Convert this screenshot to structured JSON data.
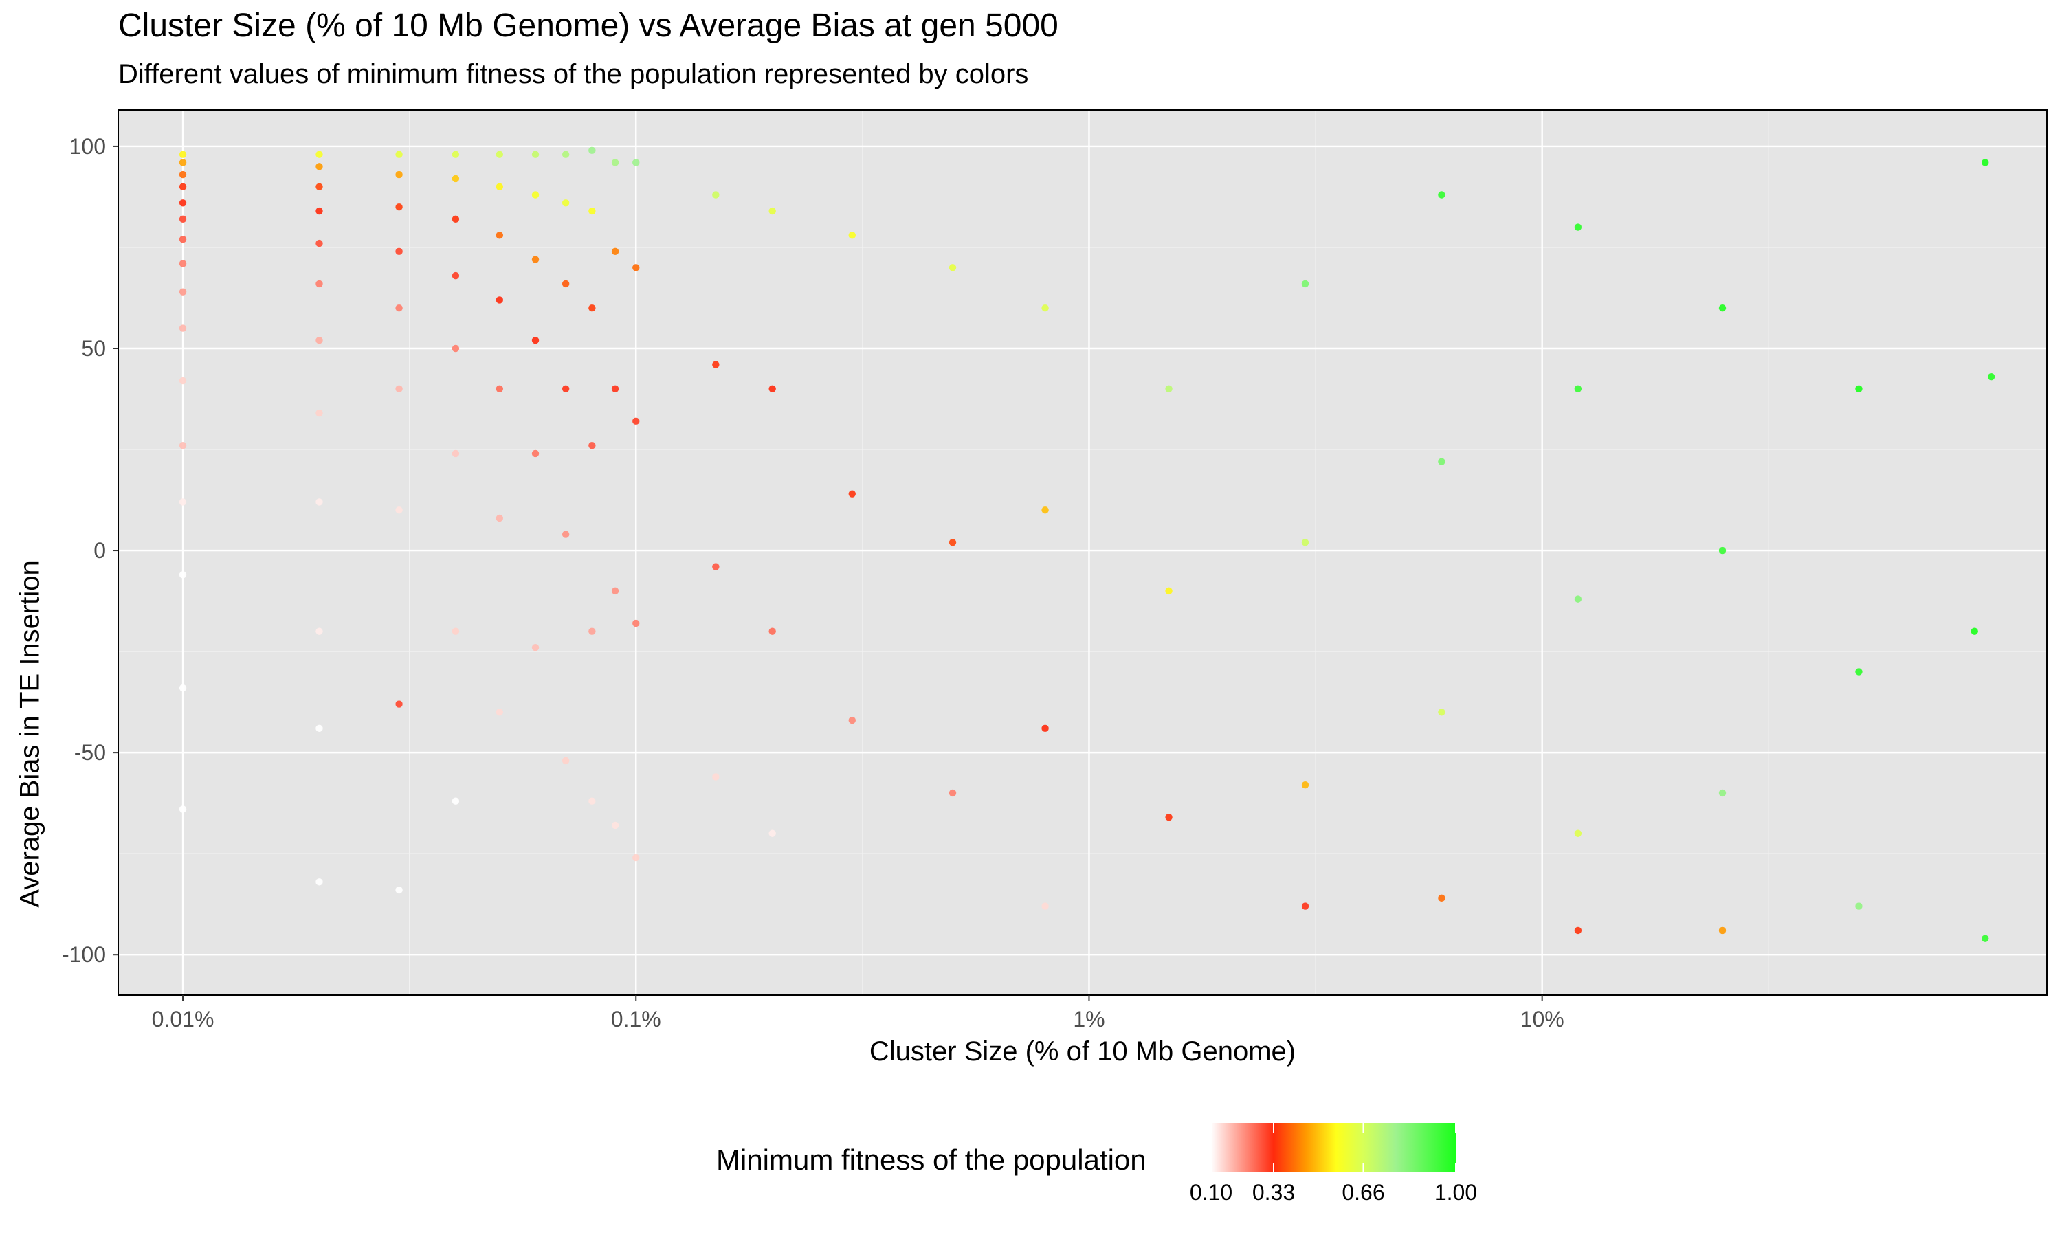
{
  "chart_data": {
    "type": "scatter",
    "title": "Cluster Size (% of 10 Mb Genome) vs Average Bias at gen 5000",
    "subtitle": "Different values of minimum fitness of the population represented by colors",
    "xlabel": "Cluster Size (% of 10 Mb Genome)",
    "ylabel": "Average Bias in TE Insertion",
    "x_scale": "log10",
    "x_unit": "percent of genome",
    "xlim": [
      0.0072,
      130
    ],
    "ylim": [
      -110,
      109
    ],
    "x_ticks": [
      {
        "value": 0.01,
        "label": "0.01%"
      },
      {
        "value": 0.1,
        "label": "0.1%"
      },
      {
        "value": 1,
        "label": "1%"
      },
      {
        "value": 10,
        "label": "10%"
      }
    ],
    "y_ticks": [
      {
        "value": 100,
        "label": "100"
      },
      {
        "value": 50,
        "label": "50"
      },
      {
        "value": 0,
        "label": "0"
      },
      {
        "value": -50,
        "label": "-50"
      },
      {
        "value": -100,
        "label": "-100"
      }
    ],
    "grid": true,
    "background": "#e5e5e5",
    "legend": {
      "title": "Minimum fitness of the population",
      "placement": "bottom",
      "type": "colorbar",
      "ticks": [
        {
          "value": 0.1,
          "label": "0.10"
        },
        {
          "value": 0.33,
          "label": "0.33"
        },
        {
          "value": 0.66,
          "label": "0.66"
        },
        {
          "value": 1.0,
          "label": "1.00"
        }
      ],
      "range": [
        0.1,
        1.0
      ],
      "stops": [
        {
          "value": 0.1,
          "color": "#ffffff"
        },
        {
          "value": 0.33,
          "color": "#ff2a0d"
        },
        {
          "value": 0.45,
          "color": "#ff9a00"
        },
        {
          "value": 0.56,
          "color": "#ffff1a"
        },
        {
          "value": 0.66,
          "color": "#d7ff57"
        },
        {
          "value": 0.78,
          "color": "#9ef28e"
        },
        {
          "value": 1.0,
          "color": "#19ff19"
        }
      ]
    },
    "points": [
      {
        "x": 0.01,
        "y": 98,
        "fitness": 0.55
      },
      {
        "x": 0.01,
        "y": 96,
        "fitness": 0.46
      },
      {
        "x": 0.01,
        "y": 93,
        "fitness": 0.4
      },
      {
        "x": 0.01,
        "y": 90,
        "fitness": 0.34
      },
      {
        "x": 0.01,
        "y": 86,
        "fitness": 0.33
      },
      {
        "x": 0.01,
        "y": 82,
        "fitness": 0.3
      },
      {
        "x": 0.01,
        "y": 77,
        "fitness": 0.27
      },
      {
        "x": 0.01,
        "y": 71,
        "fitness": 0.24
      },
      {
        "x": 0.01,
        "y": 64,
        "fitness": 0.21
      },
      {
        "x": 0.01,
        "y": 55,
        "fitness": 0.18
      },
      {
        "x": 0.01,
        "y": 42,
        "fitness": 0.15
      },
      {
        "x": 0.01,
        "y": 26,
        "fitness": 0.17
      },
      {
        "x": 0.01,
        "y": 12,
        "fitness": 0.12
      },
      {
        "x": 0.01,
        "y": -6,
        "fitness": 0.1
      },
      {
        "x": 0.01,
        "y": -34,
        "fitness": 0.1
      },
      {
        "x": 0.01,
        "y": -64,
        "fitness": 0.1
      },
      {
        "x": 0.02,
        "y": 98,
        "fitness": 0.58
      },
      {
        "x": 0.02,
        "y": 95,
        "fitness": 0.45
      },
      {
        "x": 0.02,
        "y": 90,
        "fitness": 0.36
      },
      {
        "x": 0.02,
        "y": 84,
        "fitness": 0.33
      },
      {
        "x": 0.02,
        "y": 76,
        "fitness": 0.29
      },
      {
        "x": 0.02,
        "y": 66,
        "fitness": 0.24
      },
      {
        "x": 0.02,
        "y": 52,
        "fitness": 0.19
      },
      {
        "x": 0.02,
        "y": 34,
        "fitness": 0.15
      },
      {
        "x": 0.02,
        "y": 12,
        "fitness": 0.12
      },
      {
        "x": 0.02,
        "y": -20,
        "fitness": 0.12
      },
      {
        "x": 0.02,
        "y": -44,
        "fitness": 0.1
      },
      {
        "x": 0.02,
        "y": -82,
        "fitness": 0.1
      },
      {
        "x": 0.03,
        "y": 98,
        "fitness": 0.62
      },
      {
        "x": 0.03,
        "y": 93,
        "fitness": 0.46
      },
      {
        "x": 0.03,
        "y": 85,
        "fitness": 0.35
      },
      {
        "x": 0.03,
        "y": 74,
        "fitness": 0.3
      },
      {
        "x": 0.03,
        "y": 60,
        "fitness": 0.24
      },
      {
        "x": 0.03,
        "y": 40,
        "fitness": 0.18
      },
      {
        "x": 0.03,
        "y": 10,
        "fitness": 0.13
      },
      {
        "x": 0.03,
        "y": -38,
        "fitness": 0.3
      },
      {
        "x": 0.03,
        "y": -84,
        "fitness": 0.1
      },
      {
        "x": 0.04,
        "y": 98,
        "fitness": 0.64
      },
      {
        "x": 0.04,
        "y": 92,
        "fitness": 0.5
      },
      {
        "x": 0.04,
        "y": 82,
        "fitness": 0.34
      },
      {
        "x": 0.04,
        "y": 68,
        "fitness": 0.31
      },
      {
        "x": 0.04,
        "y": 50,
        "fitness": 0.24
      },
      {
        "x": 0.04,
        "y": 24,
        "fitness": 0.16
      },
      {
        "x": 0.04,
        "y": -20,
        "fitness": 0.15
      },
      {
        "x": 0.04,
        "y": -62,
        "fitness": 0.1
      },
      {
        "x": 0.05,
        "y": 98,
        "fitness": 0.66
      },
      {
        "x": 0.05,
        "y": 90,
        "fitness": 0.55
      },
      {
        "x": 0.05,
        "y": 78,
        "fitness": 0.4
      },
      {
        "x": 0.05,
        "y": 62,
        "fitness": 0.33
      },
      {
        "x": 0.05,
        "y": 40,
        "fitness": 0.26
      },
      {
        "x": 0.05,
        "y": 8,
        "fitness": 0.18
      },
      {
        "x": 0.05,
        "y": -40,
        "fitness": 0.14
      },
      {
        "x": 0.06,
        "y": 98,
        "fitness": 0.7
      },
      {
        "x": 0.06,
        "y": 88,
        "fitness": 0.58
      },
      {
        "x": 0.06,
        "y": 72,
        "fitness": 0.42
      },
      {
        "x": 0.06,
        "y": 52,
        "fitness": 0.33
      },
      {
        "x": 0.06,
        "y": 24,
        "fitness": 0.25
      },
      {
        "x": 0.06,
        "y": -24,
        "fitness": 0.17
      },
      {
        "x": 0.07,
        "y": 98,
        "fitness": 0.74
      },
      {
        "x": 0.07,
        "y": 86,
        "fitness": 0.6
      },
      {
        "x": 0.07,
        "y": 66,
        "fitness": 0.38
      },
      {
        "x": 0.07,
        "y": 40,
        "fitness": 0.32
      },
      {
        "x": 0.07,
        "y": 4,
        "fitness": 0.22
      },
      {
        "x": 0.07,
        "y": -52,
        "fitness": 0.15
      },
      {
        "x": 0.08,
        "y": 99,
        "fitness": 0.78
      },
      {
        "x": 0.08,
        "y": 84,
        "fitness": 0.57
      },
      {
        "x": 0.08,
        "y": 60,
        "fitness": 0.35
      },
      {
        "x": 0.08,
        "y": 26,
        "fitness": 0.28
      },
      {
        "x": 0.08,
        "y": -20,
        "fitness": 0.2
      },
      {
        "x": 0.08,
        "y": -62,
        "fitness": 0.13
      },
      {
        "x": 0.09,
        "y": 96,
        "fitness": 0.76
      },
      {
        "x": 0.09,
        "y": 74,
        "fitness": 0.42
      },
      {
        "x": 0.09,
        "y": 40,
        "fitness": 0.32
      },
      {
        "x": 0.09,
        "y": -10,
        "fitness": 0.22
      },
      {
        "x": 0.09,
        "y": -68,
        "fitness": 0.13
      },
      {
        "x": 0.1,
        "y": 96,
        "fitness": 0.78
      },
      {
        "x": 0.1,
        "y": 70,
        "fitness": 0.4
      },
      {
        "x": 0.1,
        "y": 32,
        "fitness": 0.31
      },
      {
        "x": 0.1,
        "y": -18,
        "fitness": 0.24
      },
      {
        "x": 0.1,
        "y": -76,
        "fitness": 0.15
      },
      {
        "x": 0.15,
        "y": 88,
        "fitness": 0.68
      },
      {
        "x": 0.15,
        "y": 46,
        "fitness": 0.34
      },
      {
        "x": 0.15,
        "y": -4,
        "fitness": 0.28
      },
      {
        "x": 0.15,
        "y": -56,
        "fitness": 0.14
      },
      {
        "x": 0.2,
        "y": 84,
        "fitness": 0.62
      },
      {
        "x": 0.2,
        "y": 40,
        "fitness": 0.33
      },
      {
        "x": 0.2,
        "y": -20,
        "fitness": 0.26
      },
      {
        "x": 0.2,
        "y": -70,
        "fitness": 0.12
      },
      {
        "x": 0.3,
        "y": 78,
        "fitness": 0.57
      },
      {
        "x": 0.3,
        "y": 14,
        "fitness": 0.34
      },
      {
        "x": 0.3,
        "y": -42,
        "fitness": 0.23
      },
      {
        "x": 0.5,
        "y": 70,
        "fitness": 0.62
      },
      {
        "x": 0.5,
        "y": 2,
        "fitness": 0.36
      },
      {
        "x": 0.5,
        "y": -60,
        "fitness": 0.24
      },
      {
        "x": 0.8,
        "y": 60,
        "fitness": 0.64
      },
      {
        "x": 0.8,
        "y": 10,
        "fitness": 0.49
      },
      {
        "x": 0.8,
        "y": -44,
        "fitness": 0.33
      },
      {
        "x": 0.8,
        "y": -88,
        "fitness": 0.14
      },
      {
        "x": 1.5,
        "y": 40,
        "fitness": 0.72
      },
      {
        "x": 1.5,
        "y": -10,
        "fitness": 0.55
      },
      {
        "x": 1.5,
        "y": -66,
        "fitness": 0.34
      },
      {
        "x": 3,
        "y": 66,
        "fitness": 0.84
      },
      {
        "x": 3,
        "y": 2,
        "fitness": 0.68
      },
      {
        "x": 3,
        "y": -58,
        "fitness": 0.48
      },
      {
        "x": 3,
        "y": -88,
        "fitness": 0.32
      },
      {
        "x": 6,
        "y": 88,
        "fitness": 0.96
      },
      {
        "x": 6,
        "y": 22,
        "fitness": 0.84
      },
      {
        "x": 6,
        "y": -40,
        "fitness": 0.66
      },
      {
        "x": 6,
        "y": -86,
        "fitness": 0.4
      },
      {
        "x": 12,
        "y": 80,
        "fitness": 0.97
      },
      {
        "x": 12,
        "y": 40,
        "fitness": 0.95
      },
      {
        "x": 12,
        "y": -12,
        "fitness": 0.82
      },
      {
        "x": 12,
        "y": -70,
        "fitness": 0.64
      },
      {
        "x": 12,
        "y": -94,
        "fitness": 0.34
      },
      {
        "x": 25,
        "y": 60,
        "fitness": 0.99
      },
      {
        "x": 25,
        "y": 0,
        "fitness": 0.95
      },
      {
        "x": 25,
        "y": -60,
        "fitness": 0.8
      },
      {
        "x": 25,
        "y": -94,
        "fitness": 0.45
      },
      {
        "x": 50,
        "y": 40,
        "fitness": 1.0
      },
      {
        "x": 50,
        "y": -30,
        "fitness": 0.97
      },
      {
        "x": 50,
        "y": -88,
        "fitness": 0.8
      },
      {
        "x": 90,
        "y": -20,
        "fitness": 1.0
      },
      {
        "x": 95,
        "y": 96,
        "fitness": 1.0
      },
      {
        "x": 98,
        "y": 43,
        "fitness": 0.98
      },
      {
        "x": 95,
        "y": -96,
        "fitness": 0.96
      }
    ]
  }
}
